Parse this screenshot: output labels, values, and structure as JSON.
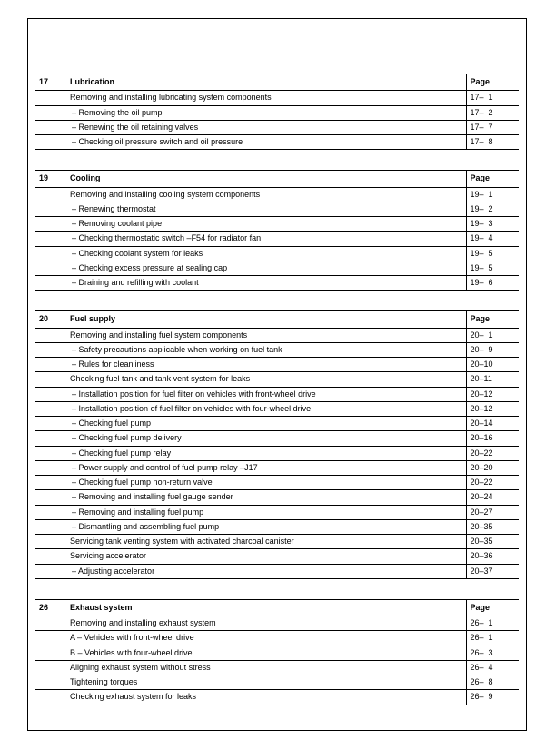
{
  "page_header_label": "Page",
  "sections": [
    {
      "number": "17",
      "title": "Lubrication",
      "rows": [
        {
          "text": "Removing and installing lubricating system components",
          "dash": false,
          "page": "17–  1"
        },
        {
          "text": "Removing the oil pump",
          "dash": true,
          "page": "17–  2"
        },
        {
          "text": "Renewing the oil retaining valves",
          "dash": true,
          "page": "17–  7"
        },
        {
          "text": "Checking oil pressure switch and oil pressure",
          "dash": true,
          "page": "17–  8"
        }
      ]
    },
    {
      "number": "19",
      "title": "Cooling",
      "rows": [
        {
          "text": "Removing and installing cooling system components",
          "dash": false,
          "page": "19–  1"
        },
        {
          "text": "Renewing thermostat",
          "dash": true,
          "page": "19–  2"
        },
        {
          "text": "Removing coolant pipe",
          "dash": true,
          "page": "19–  3"
        },
        {
          "text": "Checking thermostatic switch –F54 for radiator fan",
          "dash": true,
          "page": "19–  4"
        },
        {
          "text": "Checking coolant system for leaks",
          "dash": true,
          "page": "19–  5"
        },
        {
          "text": "Checking excess pressure at sealing cap",
          "dash": true,
          "page": "19–  5"
        },
        {
          "text": "Draining and refilling with coolant",
          "dash": true,
          "page": "19–  6"
        }
      ]
    },
    {
      "number": "20",
      "title": "Fuel supply",
      "rows": [
        {
          "text": "Removing and installing fuel system components",
          "dash": false,
          "page": "20–  1"
        },
        {
          "text": "Safety precautions applicable when working on fuel tank",
          "dash": true,
          "page": "20–  9"
        },
        {
          "text": "Rules for cleanliness",
          "dash": true,
          "page": "20–10"
        },
        {
          "text": "Checking fuel tank and tank vent system for leaks",
          "dash": false,
          "page": "20–11"
        },
        {
          "text": "Installation position for fuel filter on vehicles with front-wheel drive",
          "dash": true,
          "page": "20–12"
        },
        {
          "text": "Installation position of fuel filter on vehicles with four-wheel drive",
          "dash": true,
          "page": "20–12"
        },
        {
          "text": "Checking fuel pump",
          "dash": true,
          "page": "20–14"
        },
        {
          "text": "Checking fuel pump delivery",
          "dash": true,
          "page": "20–16"
        },
        {
          "text": "Checking fuel pump relay",
          "dash": true,
          "page": "20–22"
        },
        {
          "text": "Power supply and control of fuel pump relay –J17",
          "dash": true,
          "page": "20–20"
        },
        {
          "text": "Checking fuel pump non-return valve",
          "dash": true,
          "page": "20–22"
        },
        {
          "text": "Removing and installing fuel gauge sender",
          "dash": true,
          "page": "20–24"
        },
        {
          "text": "Removing and installing fuel pump",
          "dash": true,
          "page": "20–27"
        },
        {
          "text": "Dismantling and assembling fuel pump",
          "dash": true,
          "page": "20–35"
        },
        {
          "text": "Servicing tank venting system with activated charcoal canister",
          "dash": false,
          "page": "20–35"
        },
        {
          "text": "Servicing accelerator",
          "dash": false,
          "page": "20–36"
        },
        {
          "text": "Adjusting accelerator",
          "dash": true,
          "page": "20–37"
        }
      ]
    },
    {
      "number": "26",
      "title": "Exhaust system",
      "rows": [
        {
          "text": "Removing and installing exhaust system",
          "dash": false,
          "page": "26–  1"
        },
        {
          "text": "A – Vehicles with front-wheel drive",
          "dash": false,
          "page": "26–  1"
        },
        {
          "text": "B – Vehicles with four-wheel drive",
          "dash": false,
          "page": "26–  3"
        },
        {
          "text": "Aligning exhaust system without stress",
          "dash": false,
          "page": "26–  4"
        },
        {
          "text": "Tightening torques",
          "dash": false,
          "page": "26–  8"
        },
        {
          "text": "Checking exhaust system for leaks",
          "dash": false,
          "page": "26–  9"
        }
      ]
    }
  ]
}
